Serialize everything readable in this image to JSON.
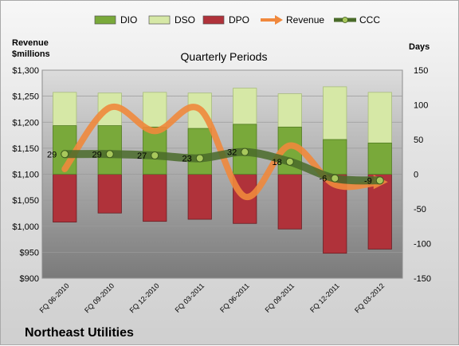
{
  "legend": {
    "items": [
      {
        "label": "DIO",
        "kind": "box",
        "color": "#79a93a"
      },
      {
        "label": "DSO",
        "kind": "box",
        "color": "#d6e8a6"
      },
      {
        "label": "DPO",
        "kind": "box",
        "color": "#b0323a"
      },
      {
        "label": "Revenue",
        "kind": "arrow",
        "color": "#f0883c"
      },
      {
        "label": "CCC",
        "kind": "dotline",
        "color": "#4a6b2a"
      }
    ]
  },
  "footer_title": "Northeast Utilities",
  "chart_data": {
    "type": "bar",
    "title": "Quarterly Periods",
    "ylabel_left": "Revenue\n$millions",
    "ylabel_right": "Days",
    "categories": [
      "FQ 06-2010",
      "FQ 09-2010",
      "FQ 12-2010",
      "FQ 03-2011",
      "FQ 06-2011",
      "FQ 09-2011",
      "FQ 12-2011",
      "FQ 03-2012"
    ],
    "ylim_left": [
      900,
      1300
    ],
    "yticks_left": [
      "$900",
      "$950",
      "$1,000",
      "$1,050",
      "$1,100",
      "$1,150",
      "$1,200",
      "$1,250",
      "$1,300"
    ],
    "ylim_right": [
      -150,
      150
    ],
    "yticks_right": [
      "-150",
      "-100",
      "-50",
      "0",
      "50",
      "100",
      "150"
    ],
    "grid": true,
    "legend_position": "top",
    "series": [
      {
        "name": "DIO",
        "axis": "right",
        "values": [
          0,
          0,
          0,
          0,
          0,
          0,
          0,
          0
        ],
        "base_series": "zero",
        "top_values": [
          70,
          70,
          68,
          66,
          72,
          68,
          50,
          45
        ],
        "color": "#79a93a"
      },
      {
        "name": "DSO",
        "axis": "right",
        "values": [
          118,
          117,
          118,
          117,
          124,
          116,
          126,
          118
        ],
        "color": "#d6e8a6"
      },
      {
        "name": "DPO",
        "axis": "right",
        "values": [
          -69,
          -56,
          -68,
          -65,
          -71,
          -79,
          -114,
          -108
        ],
        "color": "#b0323a"
      },
      {
        "name": "Revenue",
        "axis": "left",
        "values": [
          1110,
          1228,
          1183,
          1225,
          1057,
          1155,
          1080,
          1085
        ],
        "color": "#f0883c"
      },
      {
        "name": "CCC",
        "axis": "right",
        "values": [
          29,
          29,
          27,
          23,
          32,
          18,
          -6,
          -9
        ],
        "data_labels": [
          "29",
          "29",
          "27",
          "23",
          "32",
          "18",
          "-6",
          "-9"
        ],
        "color": "#4a6b2a"
      }
    ]
  }
}
